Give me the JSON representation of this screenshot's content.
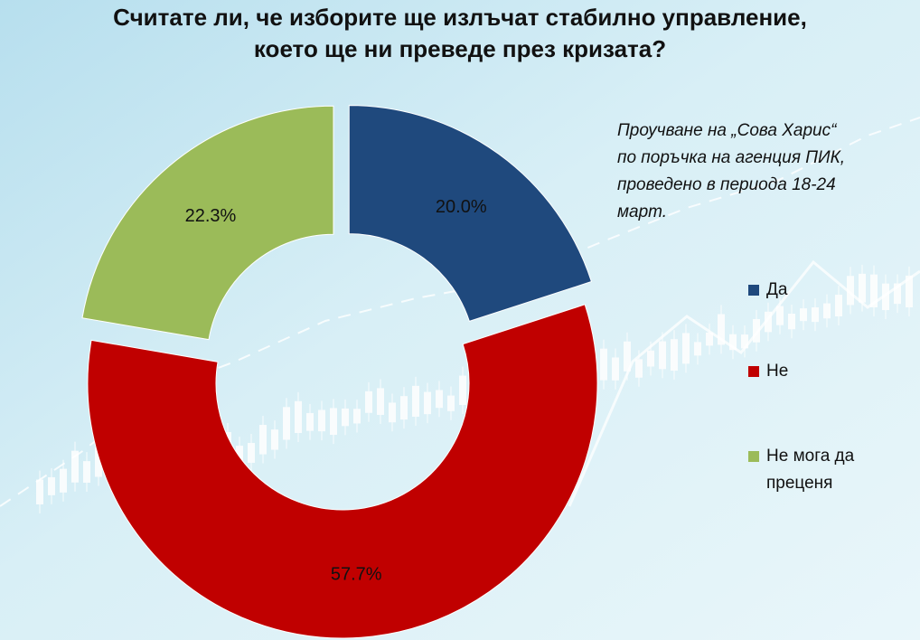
{
  "title": {
    "line1": "Считате ли, че изборите ще излъчат стабилно управление,",
    "line2": "което ще ни преведе през кризата?"
  },
  "note": {
    "line1": "Проучване на „Сова Харис“",
    "line2": "по поръчка на агенция ПИК,",
    "line3": "проведено в периода 18-24",
    "line4": "март."
  },
  "colors": {
    "da": "#1f497d",
    "ne": "#c00000",
    "nemoga": "#9bbb59"
  },
  "chart_data": {
    "type": "pie",
    "style": "donut, exploded slices",
    "categories": [
      "Да",
      "Не",
      "Не мога да преценя"
    ],
    "values": [
      20.0,
      57.7,
      22.3
    ],
    "data_labels": [
      "20.0%",
      "57.7%",
      "22.3%"
    ],
    "legend": {
      "position": "right",
      "items": [
        {
          "line1": "Да",
          "line2": ""
        },
        {
          "line1": "Не",
          "line2": ""
        },
        {
          "line1": "Не мога да",
          "line2": "преценя"
        }
      ]
    }
  }
}
